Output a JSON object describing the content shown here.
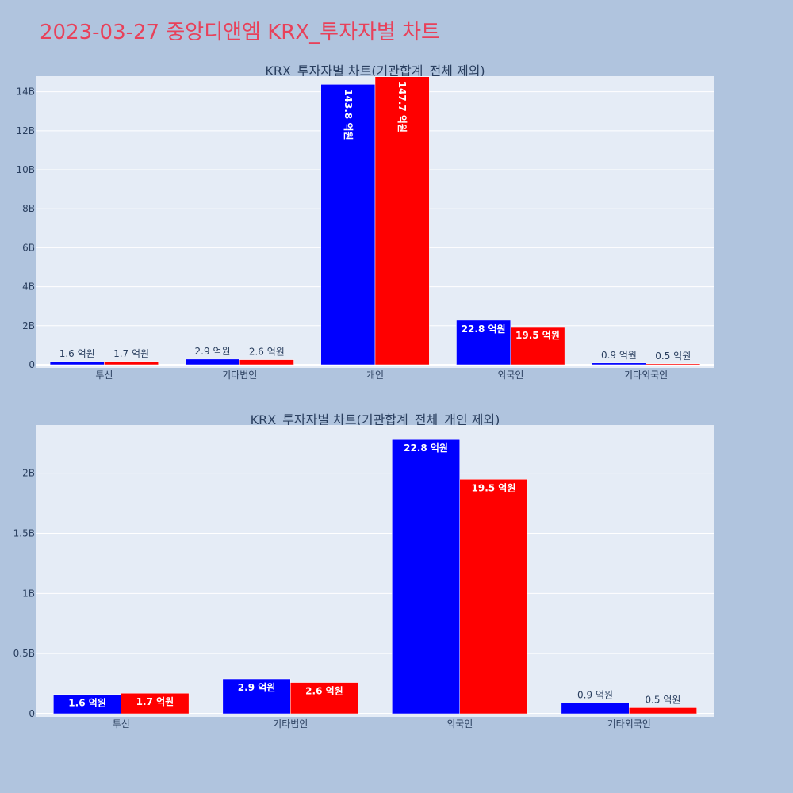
{
  "page": {
    "title": "2023-03-27 중앙디앤엠 KRX_투자자별 차트"
  },
  "colors": {
    "background": "#b0c4de",
    "plot_bg": "#e5ecf6",
    "title": "#e8415a",
    "text": "#2a3f5f",
    "series_1": "#0000ff",
    "series_2": "#ff0000"
  },
  "chart_data": [
    {
      "type": "bar",
      "title": "KRX_투자자별 차트(기관합계_전체 제외)",
      "categories": [
        "투신",
        "기타법인",
        "개인",
        "외국인",
        "기타외국인"
      ],
      "series": [
        {
          "color": "#0000ff",
          "values": [
            160000000,
            290000000,
            14380000000,
            2280000000,
            90000000
          ],
          "labels": [
            "1.6 억원",
            "2.9 억원",
            "143.8 억원",
            "22.8 억원",
            "0.9 억원"
          ]
        },
        {
          "color": "#ff0000",
          "values": [
            170000000,
            260000000,
            14770000000,
            1950000000,
            50000000
          ],
          "labels": [
            "1.7 억원",
            "2.6 억원",
            "147.7 억원",
            "19.5 억원",
            "0.5 억원"
          ]
        }
      ],
      "ylim": [
        0,
        14800000000
      ],
      "yticks": [
        0,
        2000000000,
        4000000000,
        6000000000,
        8000000000,
        10000000000,
        12000000000,
        14000000000
      ],
      "ytick_labels": [
        "0",
        "2B",
        "4B",
        "6B",
        "8B",
        "10B",
        "12B",
        "14B"
      ],
      "grid": true
    },
    {
      "type": "bar",
      "title": "KRX_투자자별 차트(기관합계_전체_개인 제외)",
      "categories": [
        "투신",
        "기타법인",
        "외국인",
        "기타외국인"
      ],
      "series": [
        {
          "color": "#0000ff",
          "values": [
            160000000,
            290000000,
            2280000000,
            90000000
          ],
          "labels": [
            "1.6 억원",
            "2.9 억원",
            "22.8 억원",
            "0.9 억원"
          ]
        },
        {
          "color": "#ff0000",
          "values": [
            170000000,
            260000000,
            1950000000,
            50000000
          ],
          "labels": [
            "1.7 억원",
            "2.6 억원",
            "19.5 억원",
            "0.5 억원"
          ]
        }
      ],
      "ylim": [
        0,
        2400000000
      ],
      "yticks": [
        0,
        500000000,
        1000000000,
        1500000000,
        2000000000
      ],
      "ytick_labels": [
        "0",
        "0.5B",
        "1B",
        "1.5B",
        "2B"
      ],
      "grid": true
    }
  ]
}
